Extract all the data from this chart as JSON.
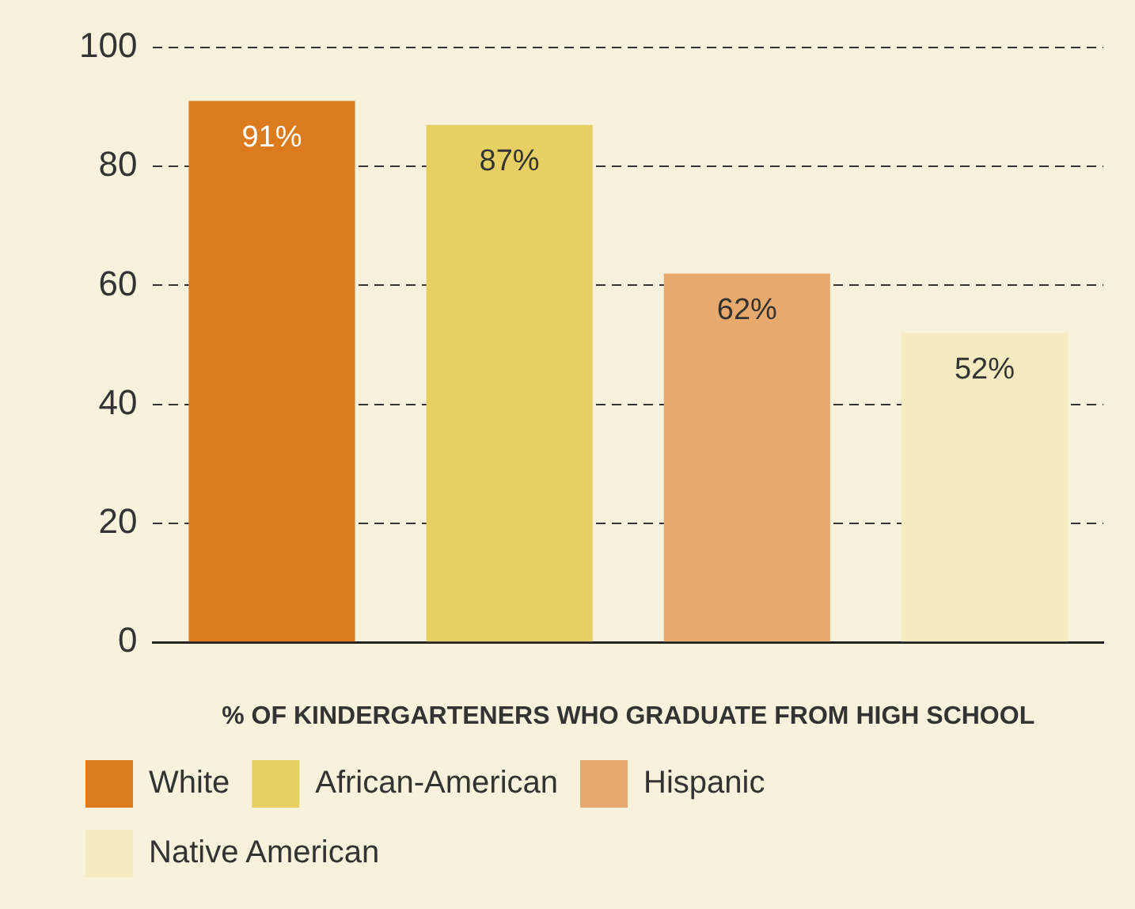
{
  "chart_data": {
    "type": "bar",
    "xlabel": "% OF KINDERGARTENERS WHO GRADUATE FROM HIGH SCHOOL",
    "categories": [
      null,
      null,
      null,
      null
    ],
    "series": [
      {
        "name": "White",
        "color": "#dc7a1e",
        "values": [
          91,
          null,
          null,
          null
        ],
        "value_labels": [
          "91%",
          null,
          null,
          null
        ]
      },
      {
        "name": "African-American",
        "color": "#e6d063",
        "values": [
          null,
          87,
          null,
          null
        ],
        "value_labels": [
          null,
          "87%",
          null,
          null
        ]
      },
      {
        "name": "Hispanic",
        "color": "#e8a96c",
        "values": [
          null,
          null,
          62,
          null
        ],
        "value_labels": [
          null,
          null,
          "62%",
          null
        ]
      },
      {
        "name": "Native American",
        "color": "#f5ebc0",
        "values": [
          null,
          null,
          null,
          52
        ],
        "value_labels": [
          null,
          null,
          null,
          "52%"
        ]
      }
    ],
    "ylim": [
      0,
      100
    ],
    "yticks": [
      0,
      20,
      40,
      60,
      80,
      100
    ],
    "grid": "y",
    "line_style": "dashed",
    "legend": "bottom"
  }
}
